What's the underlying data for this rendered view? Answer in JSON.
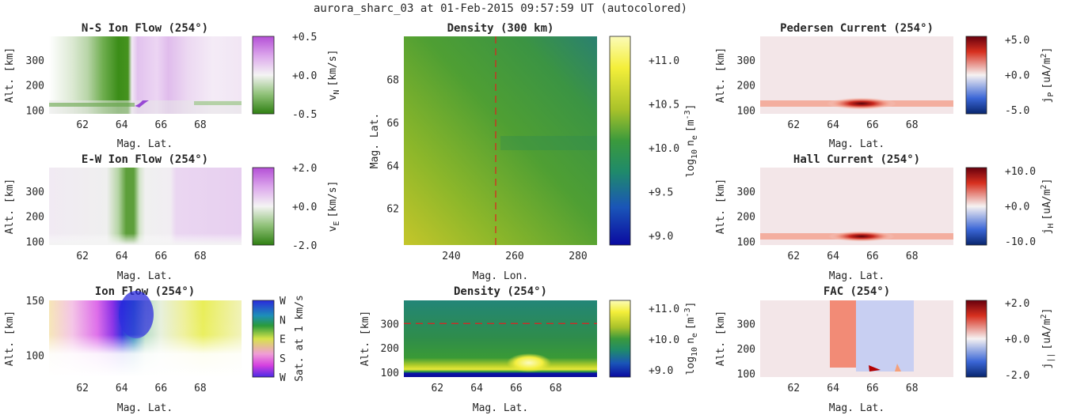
{
  "figure_title": "aurora_sharc_03 at 01-Feb-2015 09:57:59 UT (autocolored)",
  "colors": {
    "green": "#3f8f1a",
    "purple": "#c270dd",
    "red": "#b30000",
    "blue": "#1a3fd0",
    "yellow": "#f6f54c",
    "teal": "#2a7f7a",
    "white": "#ffffff"
  },
  "chart_data": [
    {
      "id": "ns",
      "type": "heatmap",
      "title": "N-S Ion Flow (254°)",
      "xlabel": "Mag. Lat.",
      "ylabel": "Alt. [km]",
      "xticks": [
        "62",
        "64",
        "66",
        "68"
      ],
      "yticks": [
        "100",
        "200",
        "300"
      ],
      "xlim": [
        60.3,
        70.1
      ],
      "ylim": [
        85,
        395
      ],
      "colorbar": {
        "label": "v",
        "sub": "N",
        "unit": "[km/s]",
        "ticks": [
          "+0.5",
          "+0.0",
          "-0.5"
        ],
        "cmap": "green-white-purple"
      }
    },
    {
      "id": "ew",
      "type": "heatmap",
      "title": "E-W Ion Flow (254°)",
      "xlabel": "Mag. Lat.",
      "ylabel": "Alt. [km]",
      "xticks": [
        "62",
        "64",
        "66",
        "68"
      ],
      "yticks": [
        "100",
        "200",
        "300"
      ],
      "xlim": [
        60.3,
        70.1
      ],
      "ylim": [
        85,
        395
      ],
      "colorbar": {
        "label": "v",
        "sub": "E",
        "unit": "[km/s]",
        "ticks": [
          "+2.0",
          "+0.0",
          "-2.0"
        ],
        "cmap": "green-white-purple"
      }
    },
    {
      "id": "ionflow",
      "type": "heatmap",
      "title": "Ion Flow (254°)",
      "xlabel": "Mag. Lat.",
      "ylabel": "Alt. [km]",
      "xticks": [
        "62",
        "64",
        "66",
        "68"
      ],
      "yticks": [
        "100",
        "150"
      ],
      "xlim": [
        60.3,
        70.1
      ],
      "ylim": [
        80,
        150
      ],
      "colorbar": {
        "label": "Sat. at 1 km/s",
        "ticks": [
          "W",
          "N",
          "E",
          "S",
          "W"
        ],
        "cmap": "direction-wheel"
      }
    },
    {
      "id": "dens300",
      "type": "heatmap",
      "title": "Density (300 km)",
      "xlabel": "Mag. Lon.",
      "ylabel": "Mag. Lat.",
      "xticks": [
        "240",
        "260",
        "280"
      ],
      "yticks": [
        "62",
        "64",
        "66",
        "68"
      ],
      "xlim": [
        225,
        286
      ],
      "ylim": [
        60.3,
        70
      ],
      "marker": {
        "axis": "x",
        "value": 254,
        "style": "dashed red"
      },
      "colorbar": {
        "label": "log",
        "sub": "10",
        "label2": "n",
        "sub2": "e",
        "unit": "[m",
        "unit_sup": "-3",
        "unit_end": "]",
        "ticks": [
          "+11.0",
          "+10.5",
          "+10.0",
          "+9.5",
          "+9.0"
        ],
        "cmap": "blue-green-yellow"
      }
    },
    {
      "id": "dens254",
      "type": "heatmap",
      "title": "Density (254°)",
      "xlabel": "Mag. Lat.",
      "ylabel": "Alt. [km]",
      "xticks": [
        "62",
        "64",
        "66",
        "68"
      ],
      "yticks": [
        "100",
        "200",
        "300"
      ],
      "xlim": [
        60.3,
        70.1
      ],
      "ylim": [
        80,
        395
      ],
      "marker": {
        "axis": "y",
        "value": 300,
        "style": "dashed red"
      },
      "colorbar": {
        "label": "log",
        "sub": "10",
        "label2": "n",
        "sub2": "e",
        "unit": "[m",
        "unit_sup": "-3",
        "unit_end": "]",
        "ticks": [
          "+11.0",
          "+10.0",
          "+9.0"
        ],
        "cmap": "blue-green-yellow"
      }
    },
    {
      "id": "ped",
      "type": "heatmap",
      "title": "Pedersen Current (254°)",
      "xlabel": "Mag. Lat.",
      "ylabel": "Alt. [km]",
      "xticks": [
        "62",
        "64",
        "66",
        "68"
      ],
      "yticks": [
        "100",
        "200",
        "300"
      ],
      "xlim": [
        60.3,
        70.1
      ],
      "ylim": [
        85,
        395
      ],
      "colorbar": {
        "label": "j",
        "sub": "P",
        "unit": "[uA/m",
        "unit_sup": "2",
        "unit_end": "]",
        "ticks": [
          "+5.0",
          "+0.0",
          "-5.0"
        ],
        "cmap": "blue-white-red"
      }
    },
    {
      "id": "hall",
      "type": "heatmap",
      "title": "Hall Current (254°)",
      "xlabel": "Mag. Lat.",
      "ylabel": "Alt. [km]",
      "xticks": [
        "62",
        "64",
        "66",
        "68"
      ],
      "yticks": [
        "100",
        "200",
        "300"
      ],
      "xlim": [
        60.3,
        70.1
      ],
      "ylim": [
        85,
        395
      ],
      "colorbar": {
        "label": "j",
        "sub": "H",
        "unit": "[uA/m",
        "unit_sup": "2",
        "unit_end": "]",
        "ticks": [
          "+10.0",
          "+0.0",
          "-10.0"
        ],
        "cmap": "blue-white-red"
      }
    },
    {
      "id": "fac",
      "type": "heatmap",
      "title": "FAC (254°)",
      "xlabel": "Mag. Lat.",
      "ylabel": "Alt. [km]",
      "xticks": [
        "62",
        "64",
        "66",
        "68"
      ],
      "yticks": [
        "100",
        "200",
        "300"
      ],
      "xlim": [
        60.3,
        70.1
      ],
      "ylim": [
        85,
        395
      ],
      "colorbar": {
        "label": "j",
        "sub": "||",
        "unit": "[uA/m",
        "unit_sup": "2",
        "unit_end": "]",
        "ticks": [
          "+2.0",
          "+0.0",
          "-2.0"
        ],
        "cmap": "blue-white-red"
      }
    }
  ]
}
